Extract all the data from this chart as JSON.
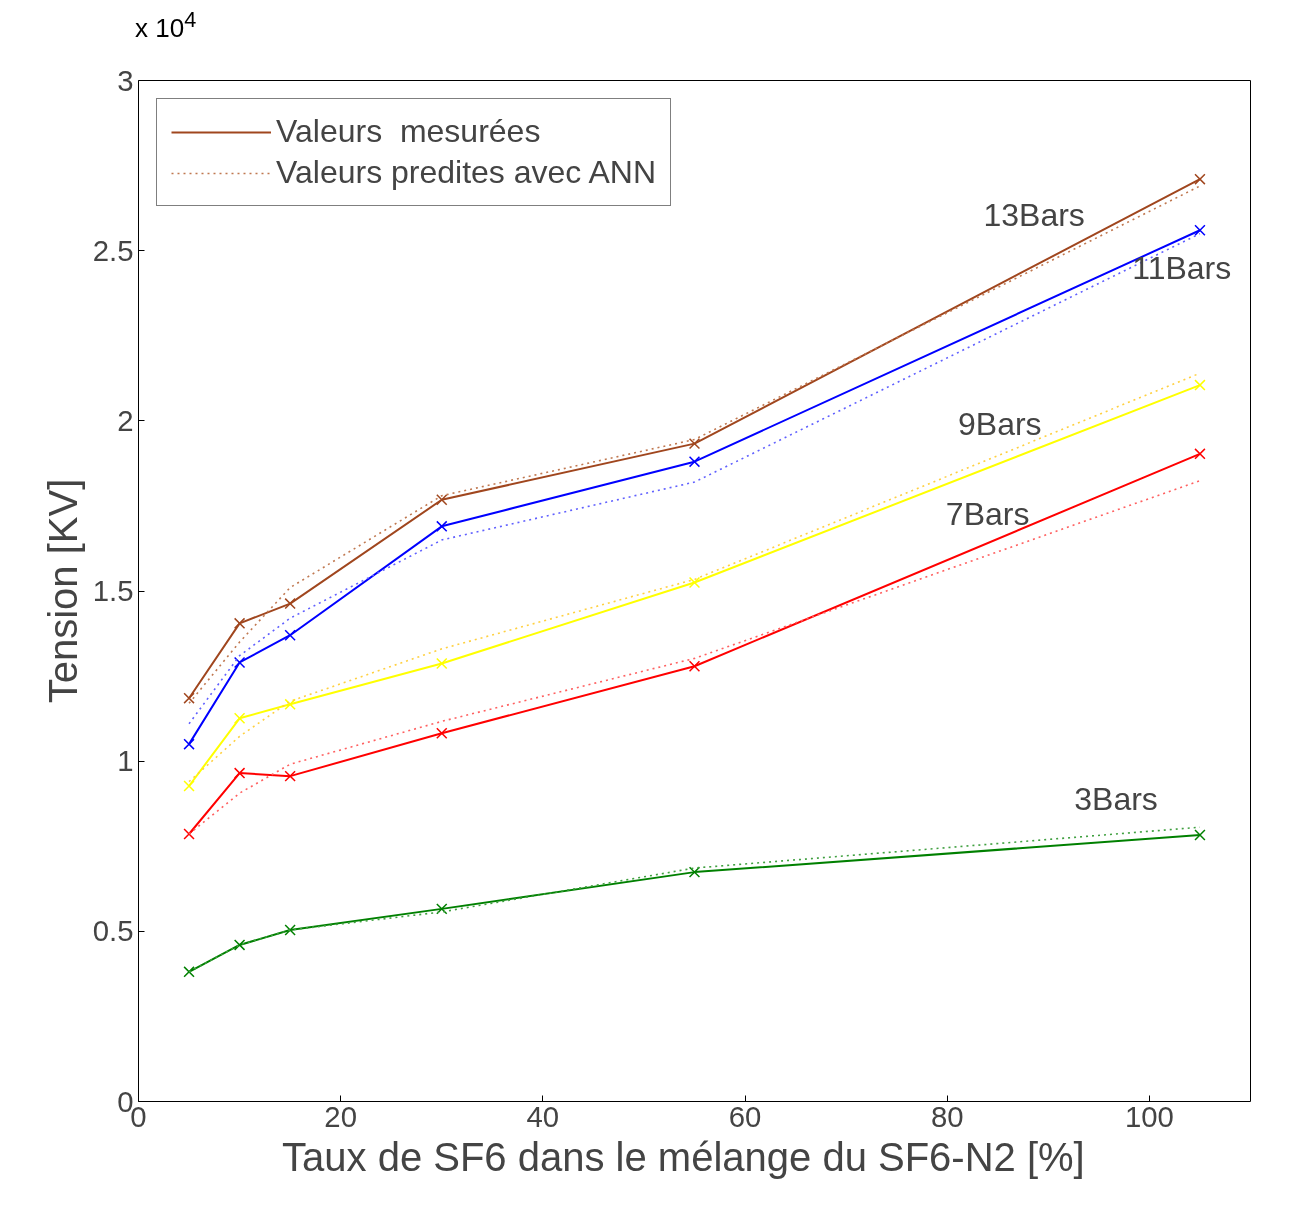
{
  "chart_data": {
    "type": "line",
    "xlabel": "Taux de SF6 dans le mélange  du  SF6-N2 [%]",
    "ylabel": "Tension [KV]",
    "x": [
      5,
      10,
      15,
      30,
      55,
      105
    ],
    "series": [
      {
        "name": "Valeurs  mesurées",
        "color": "#a0461e",
        "line_style": "solid",
        "marker": "cross",
        "values": [
          1.185,
          1.405,
          1.463,
          1.768,
          1.933,
          2.71
        ]
      },
      {
        "name": "Valeurs predites avec ANN",
        "color": "#c07850",
        "line_style": "dotted",
        "marker": "none",
        "values": [
          1.17,
          1.35,
          1.51,
          1.78,
          1.945,
          2.69
        ]
      },
      {
        "color": "#0000ff",
        "line_style": "solid",
        "marker": "cross",
        "values": [
          1.05,
          1.29,
          1.37,
          1.69,
          1.88,
          2.56
        ]
      },
      {
        "color": "#6060ff",
        "line_style": "dotted",
        "marker": "none",
        "values": [
          1.11,
          1.31,
          1.42,
          1.65,
          1.82,
          2.55
        ]
      },
      {
        "color": "#ffff00",
        "line_style": "solid",
        "marker": "cross",
        "values": [
          0.927,
          1.126,
          1.167,
          1.287,
          1.525,
          2.105
        ]
      },
      {
        "color": "#ffd040",
        "line_style": "dotted",
        "marker": "none",
        "values": [
          0.94,
          1.073,
          1.176,
          1.33,
          1.534,
          2.14
        ]
      },
      {
        "color": "#ff0000",
        "line_style": "solid",
        "marker": "cross",
        "values": [
          0.786,
          0.965,
          0.956,
          1.082,
          1.279,
          1.903
        ]
      },
      {
        "color": "#ff6060",
        "line_style": "dotted",
        "marker": "none",
        "values": [
          0.786,
          0.906,
          0.991,
          1.117,
          1.302,
          1.824
        ]
      },
      {
        "color": "#008000",
        "line_style": "solid",
        "marker": "cross",
        "values": [
          0.381,
          0.46,
          0.504,
          0.566,
          0.674,
          0.783
        ]
      },
      {
        "color": "#40a040",
        "line_style": "dotted",
        "marker": "none",
        "values": [
          0.381,
          0.46,
          0.504,
          0.557,
          0.686,
          0.806
        ]
      }
    ],
    "xlim": [
      0,
      110
    ],
    "ylim": [
      0,
      3
    ],
    "xticks": [
      0,
      20,
      40,
      60,
      80,
      100
    ],
    "yticks": [
      0,
      0.5,
      1,
      1.5,
      2,
      2.5,
      3
    ],
    "grid": false,
    "legend": "top left",
    "annotations": [
      "x 10$^{4}$",
      "13Bars",
      "11Bars",
      "9Bars",
      "7Bars",
      "3Bars"
    ]
  }
}
